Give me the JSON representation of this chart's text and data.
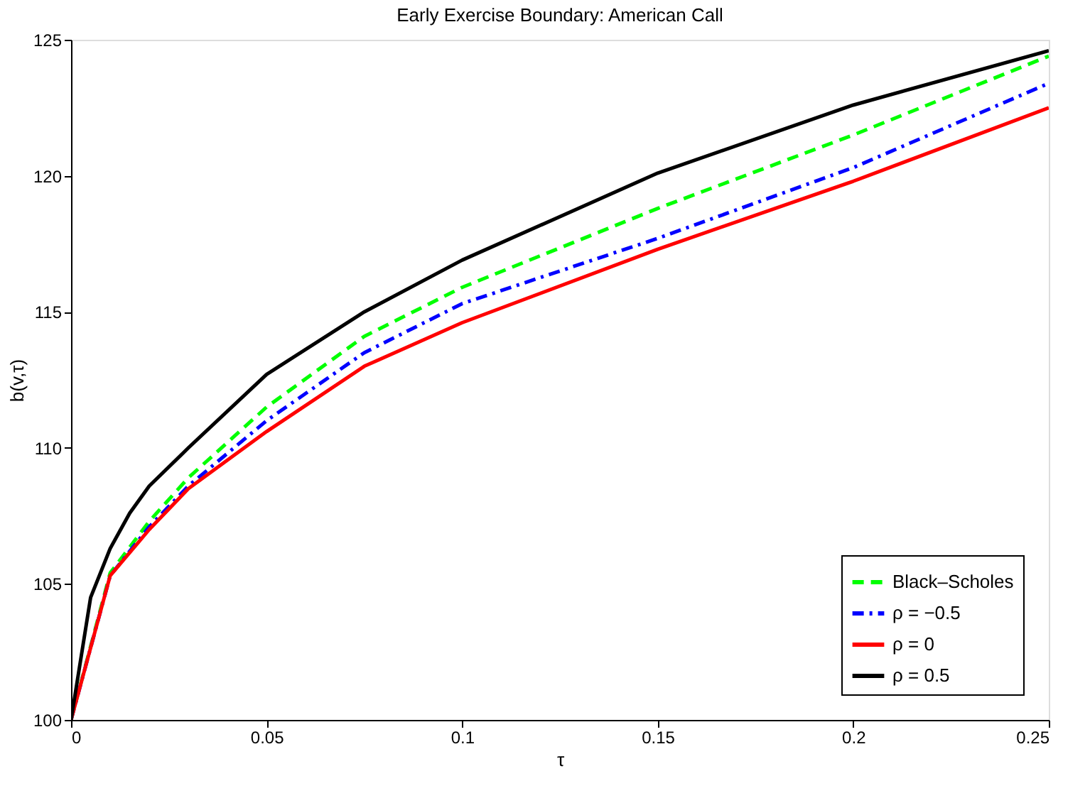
{
  "chart_data": {
    "type": "line",
    "title": "Early Exercise Boundary: American Call",
    "xlabel": "τ",
    "ylabel": "b(v,τ)",
    "xlim": [
      0,
      0.25
    ],
    "xticks": [
      0,
      0.05,
      0.1,
      0.15,
      0.2,
      0.25
    ],
    "ylim": [
      100,
      125
    ],
    "yticks": [
      100,
      105,
      110,
      115,
      120,
      125
    ],
    "grid": false,
    "legend": "bottom right",
    "marker": "none",
    "series": [
      {
        "name": "Black–Scholes",
        "color": "#00ff00",
        "line_style": "dashed",
        "x": [
          0,
          0.01,
          0.02,
          0.03,
          0.05,
          0.075,
          0.1,
          0.15,
          0.2,
          0.25
        ],
        "values": [
          100,
          105.4,
          107.3,
          108.9,
          111.5,
          114.1,
          115.9,
          118.8,
          121.5,
          124.4
        ]
      },
      {
        "name": "ρ = −0.5",
        "color": "#0000ff",
        "line_style": "dashdot",
        "x": [
          0,
          0.01,
          0.02,
          0.03,
          0.05,
          0.075,
          0.1,
          0.15,
          0.2,
          0.25
        ],
        "values": [
          100,
          105.3,
          107.1,
          108.6,
          111.0,
          113.5,
          115.3,
          117.7,
          120.3,
          123.4
        ]
      },
      {
        "name": "ρ = 0",
        "color": "#ff0000",
        "line_style": "solid",
        "x": [
          0,
          0.01,
          0.02,
          0.03,
          0.05,
          0.075,
          0.1,
          0.15,
          0.2,
          0.25
        ],
        "values": [
          100,
          105.3,
          107.0,
          108.5,
          110.6,
          113.0,
          114.6,
          117.3,
          119.8,
          122.5
        ]
      },
      {
        "name": "ρ = 0.5",
        "color": "#000000",
        "line_style": "solid",
        "x": [
          0,
          0.005,
          0.01,
          0.015,
          0.02,
          0.03,
          0.05,
          0.075,
          0.1,
          0.15,
          0.2,
          0.25
        ],
        "values": [
          100,
          104.5,
          106.3,
          107.6,
          108.6,
          110.0,
          112.7,
          115.0,
          116.9,
          120.1,
          122.6,
          124.6
        ]
      }
    ]
  }
}
